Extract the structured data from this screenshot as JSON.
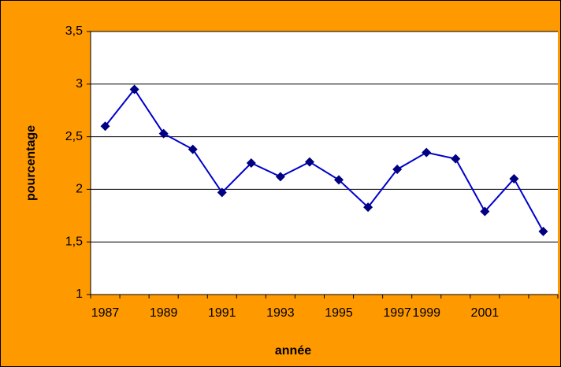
{
  "chart_data": {
    "type": "line",
    "x_label": "année",
    "y_label": "pourcentage",
    "categories": [
      "1987",
      null,
      "1989",
      null,
      "1991",
      null,
      "1993",
      null,
      "1995",
      null,
      "1997",
      "1999",
      null,
      "2001",
      null,
      null
    ],
    "series": [
      {
        "color": "#0000cc",
        "marker_color": "#000080",
        "values": [
          2.6,
          2.95,
          2.53,
          2.38,
          1.97,
          2.25,
          2.12,
          2.26,
          2.09,
          1.83,
          2.19,
          2.35,
          2.29,
          1.79,
          2.1,
          1.6
        ]
      }
    ],
    "ylim": [
      1,
      3.5
    ],
    "yticks": [
      1,
      {
        "value": 1.5,
        "label": "1,5"
      },
      2,
      {
        "value": 2.5,
        "label": "2,5"
      },
      3,
      {
        "value": 3.5,
        "label": "3,5"
      }
    ],
    "grid": true
  }
}
